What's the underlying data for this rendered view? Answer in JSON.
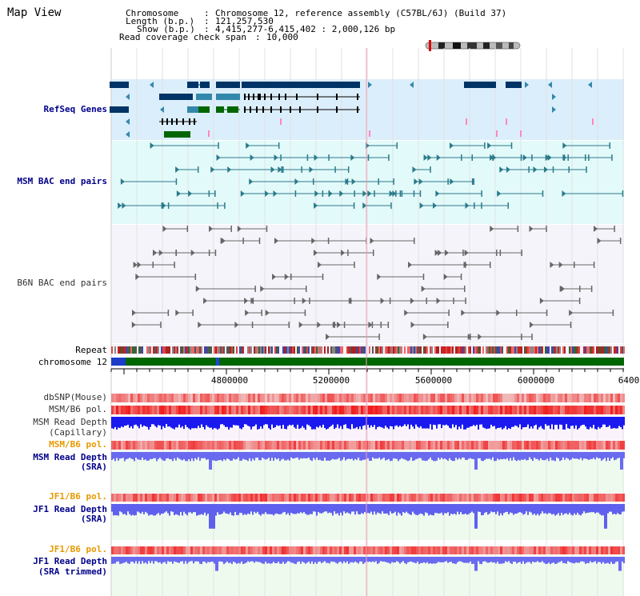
{
  "window": {
    "title": "Map View"
  },
  "header": {
    "chromosome_key": "Chromosome",
    "chromosome_value": "Chromosome 12, reference assembly (C57BL/6J) (Build 37)",
    "length_key": "Length (b.p.)",
    "length_value": "121,257,530",
    "show_key": "Show (b.p.)",
    "show_value": "4,415,277-6,415,402 : 2,000,126 bp",
    "coverage_key": "Read coverage check span",
    "coverage_value": "10,000"
  },
  "tracks": {
    "refseq": "RefSeq Genes",
    "msm_bac": "MSM BAC end pairs",
    "b6n_bac": "B6N BAC end pairs",
    "repeat": "Repeat",
    "chromosome": "chromosome 12",
    "dbsnp": "dbSNP(Mouse)",
    "msm_b6_pol_1": "MSM/B6 pol.",
    "msm_depth_cap_1": "MSM Read Depth",
    "msm_depth_cap_2": "(Capillary)",
    "msm_b6_pol_2": "MSM/B6 pol.",
    "msm_depth_sra_1": "MSM Read Depth",
    "msm_depth_sra_2": "(SRA)",
    "jf1_b6_pol_1": "JF1/B6 pol.",
    "jf1_depth_sra_1": "JF1 Read Depth",
    "jf1_depth_sra_2": "(SRA)",
    "jf1_b6_pol_2": "JF1/B6 pol.",
    "jf1_depth_trim_1": "JF1 Read Depth",
    "jf1_depth_trim_2": "(SRA trimmed)"
  },
  "axis": {
    "ticks": [
      "4800000",
      "5200000",
      "5600000",
      "6000000",
      "6400"
    ],
    "range": [
      4415277,
      6415402
    ]
  },
  "colors": {
    "refseq_bg": "#dbeefb",
    "msm_bg": "#e3fafa",
    "b6n_bg": "#f6f4fb",
    "gene_navy": "#003366",
    "gene_teal": "#3388aa",
    "gene_green": "#006600",
    "msm_pair": "#2a7a8a",
    "b6n_pair": "#666666",
    "depth_blue": "#3030ff",
    "chromosome_green": "#006600"
  }
}
